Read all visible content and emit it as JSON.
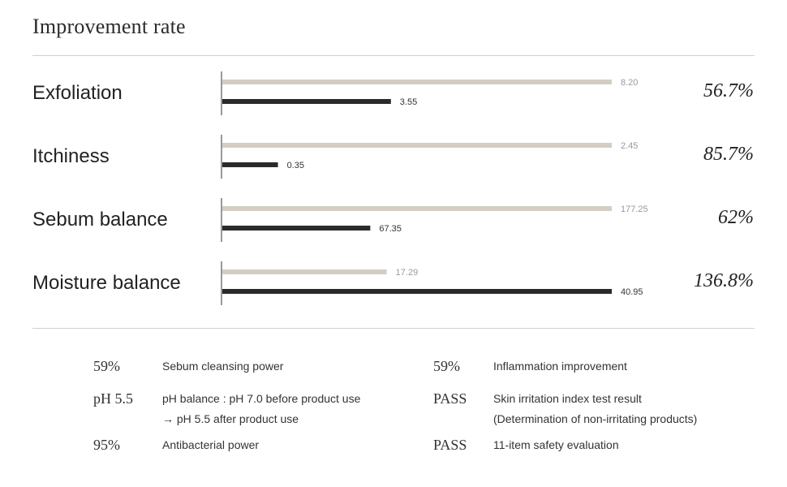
{
  "title": "Improvement rate",
  "colors": {
    "before": "#d3cdc3",
    "after": "#2a2a2a",
    "axis": "#333333",
    "before_label": "#999999",
    "after_label": "#333333"
  },
  "chart_data": {
    "type": "bar",
    "orientation": "horizontal",
    "categories": [
      "Exfoliation",
      "Itchiness",
      "Sebum balance",
      "Moisture balance"
    ],
    "series": [
      {
        "values": [
          8.2,
          2.45,
          177.25,
          17.29
        ]
      },
      {
        "values": [
          3.55,
          0.35,
          67.35,
          40.95
        ]
      }
    ],
    "value_labels": [
      [
        "8.20",
        "3.55"
      ],
      [
        "2.45",
        "0.35"
      ],
      [
        "177.25",
        "67.35"
      ],
      [
        "17.29",
        "40.95"
      ]
    ],
    "improvement_rates": [
      "56.7%",
      "85.7%",
      "62%",
      "136.8%"
    ],
    "normalization": "each category scaled to its larger value",
    "grid": false
  },
  "stats": {
    "left": [
      {
        "value": "59%",
        "lines": [
          "Sebum cleansing power"
        ]
      },
      {
        "value": "pH 5.5",
        "lines": [
          "pH balance : pH 7.0 before product use",
          "→ pH 5.5 after product use"
        ]
      },
      {
        "value": "95%",
        "lines": [
          "Antibacterial power"
        ]
      }
    ],
    "right": [
      {
        "value": "59%",
        "lines": [
          "Inflammation improvement"
        ]
      },
      {
        "value": "PASS",
        "lines": [
          "Skin irritation index test result",
          "(Determination of non-irritating products)"
        ]
      },
      {
        "value": "PASS",
        "lines": [
          "11-item safety evaluation"
        ]
      }
    ]
  }
}
